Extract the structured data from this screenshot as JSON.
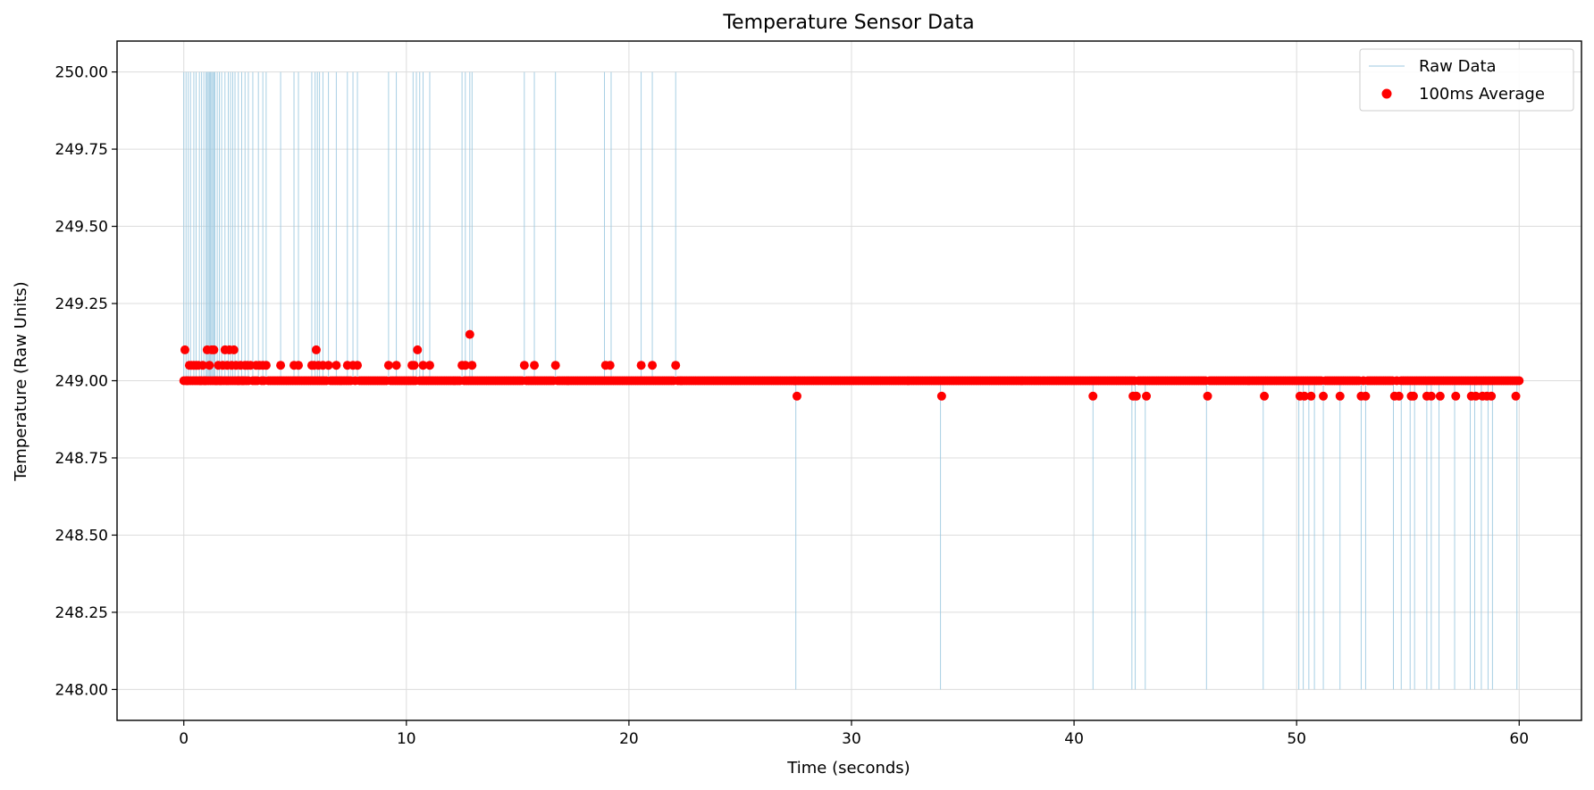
{
  "chart_data": {
    "type": "line",
    "title": "Temperature Sensor Data",
    "xlabel": "Time (seconds)",
    "ylabel": "Temperature (Raw Units)",
    "xlim": [
      -3,
      62.8
    ],
    "ylim": [
      247.9,
      250.1
    ],
    "xticks": [
      0,
      10,
      20,
      30,
      40,
      50,
      60
    ],
    "xtick_labels": [
      "0",
      "10",
      "20",
      "30",
      "40",
      "50",
      "60"
    ],
    "yticks": [
      248.0,
      248.25,
      248.5,
      248.75,
      249.0,
      249.25,
      249.5,
      249.75,
      250.0
    ],
    "ytick_labels": [
      "248.00",
      "248.25",
      "248.50",
      "248.75",
      "249.00",
      "249.25",
      "249.50",
      "249.75",
      "250.00"
    ],
    "grid": true,
    "legend_position": "top-right",
    "colors": {
      "raw": "#9ecae1",
      "average": "#ff0000"
    },
    "series": [
      {
        "name": "Raw Data",
        "kind": "line",
        "baseline": 249.0,
        "spikes_up": [
          0.0,
          0.1,
          0.2,
          0.3,
          0.45,
          0.55,
          0.7,
          0.8,
          0.9,
          1.0,
          1.05,
          1.1,
          1.15,
          1.2,
          1.25,
          1.3,
          1.35,
          1.4,
          1.5,
          1.6,
          1.7,
          1.85,
          2.0,
          2.1,
          2.2,
          2.3,
          2.45,
          2.6,
          2.75,
          2.9,
          3.1,
          3.35,
          3.55,
          3.7,
          4.35,
          4.95,
          5.15,
          5.75,
          5.9,
          6.0,
          6.1,
          6.25,
          6.5,
          6.85,
          7.35,
          7.6,
          7.8,
          9.2,
          9.55,
          10.3,
          10.45,
          10.6,
          10.75,
          11.05,
          12.5,
          12.65,
          12.85,
          12.95,
          15.3,
          15.75,
          16.7,
          18.9,
          19.2,
          20.55,
          21.05,
          22.1
        ],
        "spikes_down": [
          27.5,
          34.0,
          40.85,
          42.6,
          42.75,
          43.2,
          45.95,
          48.5,
          50.1,
          50.3,
          50.55,
          50.8,
          51.2,
          51.95,
          52.9,
          53.1,
          54.35,
          54.7,
          55.1,
          55.3,
          55.85,
          56.05,
          56.4,
          57.1,
          57.8,
          58.0,
          58.3,
          58.6,
          58.8,
          59.9
        ]
      },
      {
        "name": "100ms Average",
        "kind": "scatter",
        "baseline": 249.0,
        "x_start": 0.0,
        "x_end": 60.0,
        "x_step": 0.1,
        "deviations": [
          {
            "x": 0.05,
            "y": 249.1
          },
          {
            "x": 0.15,
            "y": 249.0
          },
          {
            "x": 0.25,
            "y": 249.05
          },
          {
            "x": 0.35,
            "y": 249.05
          },
          {
            "x": 0.45,
            "y": 249.05
          },
          {
            "x": 0.55,
            "y": 249.05
          },
          {
            "x": 0.65,
            "y": 249.05
          },
          {
            "x": 0.75,
            "y": 249.0
          },
          {
            "x": 0.85,
            "y": 249.05
          },
          {
            "x": 0.95,
            "y": 249.0
          },
          {
            "x": 1.05,
            "y": 249.1
          },
          {
            "x": 1.15,
            "y": 249.05
          },
          {
            "x": 1.25,
            "y": 249.1
          },
          {
            "x": 1.35,
            "y": 249.1
          },
          {
            "x": 1.45,
            "y": 249.0
          },
          {
            "x": 1.55,
            "y": 249.05
          },
          {
            "x": 1.65,
            "y": 249.0
          },
          {
            "x": 1.75,
            "y": 249.05
          },
          {
            "x": 1.85,
            "y": 249.1
          },
          {
            "x": 1.95,
            "y": 249.05
          },
          {
            "x": 2.05,
            "y": 249.1
          },
          {
            "x": 2.15,
            "y": 249.05
          },
          {
            "x": 2.25,
            "y": 249.1
          },
          {
            "x": 2.35,
            "y": 249.05
          },
          {
            "x": 2.45,
            "y": 249.0
          },
          {
            "x": 2.55,
            "y": 249.05
          },
          {
            "x": 2.65,
            "y": 249.0
          },
          {
            "x": 2.75,
            "y": 249.05
          },
          {
            "x": 2.85,
            "y": 249.05
          },
          {
            "x": 3.0,
            "y": 249.05
          },
          {
            "x": 3.1,
            "y": 249.0
          },
          {
            "x": 3.25,
            "y": 249.05
          },
          {
            "x": 3.4,
            "y": 249.05
          },
          {
            "x": 3.55,
            "y": 249.05
          },
          {
            "x": 3.7,
            "y": 249.05
          },
          {
            "x": 4.35,
            "y": 249.05
          },
          {
            "x": 4.95,
            "y": 249.05
          },
          {
            "x": 5.15,
            "y": 249.05
          },
          {
            "x": 5.75,
            "y": 249.05
          },
          {
            "x": 5.85,
            "y": 249.05
          },
          {
            "x": 5.95,
            "y": 249.1
          },
          {
            "x": 6.05,
            "y": 249.05
          },
          {
            "x": 6.25,
            "y": 249.05
          },
          {
            "x": 6.5,
            "y": 249.05
          },
          {
            "x": 6.85,
            "y": 249.05
          },
          {
            "x": 7.35,
            "y": 249.05
          },
          {
            "x": 7.6,
            "y": 249.05
          },
          {
            "x": 7.8,
            "y": 249.05
          },
          {
            "x": 9.2,
            "y": 249.05
          },
          {
            "x": 9.55,
            "y": 249.05
          },
          {
            "x": 10.25,
            "y": 249.05
          },
          {
            "x": 10.35,
            "y": 249.05
          },
          {
            "x": 10.5,
            "y": 249.1
          },
          {
            "x": 10.75,
            "y": 249.05
          },
          {
            "x": 11.05,
            "y": 249.05
          },
          {
            "x": 12.5,
            "y": 249.05
          },
          {
            "x": 12.65,
            "y": 249.05
          },
          {
            "x": 12.85,
            "y": 249.15
          },
          {
            "x": 12.95,
            "y": 249.05
          },
          {
            "x": 15.3,
            "y": 249.05
          },
          {
            "x": 15.75,
            "y": 249.05
          },
          {
            "x": 16.7,
            "y": 249.05
          },
          {
            "x": 18.95,
            "y": 249.05
          },
          {
            "x": 19.15,
            "y": 249.05
          },
          {
            "x": 20.55,
            "y": 249.05
          },
          {
            "x": 21.05,
            "y": 249.05
          },
          {
            "x": 22.1,
            "y": 249.05
          },
          {
            "x": 27.55,
            "y": 248.95
          },
          {
            "x": 34.05,
            "y": 248.95
          },
          {
            "x": 40.85,
            "y": 248.95
          },
          {
            "x": 42.65,
            "y": 248.95
          },
          {
            "x": 42.8,
            "y": 248.95
          },
          {
            "x": 43.25,
            "y": 248.95
          },
          {
            "x": 46.0,
            "y": 248.95
          },
          {
            "x": 48.55,
            "y": 248.95
          },
          {
            "x": 50.15,
            "y": 248.95
          },
          {
            "x": 50.35,
            "y": 248.95
          },
          {
            "x": 50.65,
            "y": 248.95
          },
          {
            "x": 51.2,
            "y": 248.95
          },
          {
            "x": 51.95,
            "y": 248.95
          },
          {
            "x": 52.9,
            "y": 248.95
          },
          {
            "x": 53.1,
            "y": 248.95
          },
          {
            "x": 54.4,
            "y": 248.95
          },
          {
            "x": 54.6,
            "y": 248.95
          },
          {
            "x": 55.15,
            "y": 248.95
          },
          {
            "x": 55.25,
            "y": 248.95
          },
          {
            "x": 55.85,
            "y": 248.95
          },
          {
            "x": 56.05,
            "y": 248.95
          },
          {
            "x": 56.45,
            "y": 248.95
          },
          {
            "x": 57.15,
            "y": 248.95
          },
          {
            "x": 57.85,
            "y": 248.95
          },
          {
            "x": 58.05,
            "y": 248.95
          },
          {
            "x": 58.35,
            "y": 248.95
          },
          {
            "x": 58.55,
            "y": 248.95
          },
          {
            "x": 58.75,
            "y": 248.95
          },
          {
            "x": 59.85,
            "y": 248.95
          }
        ]
      }
    ]
  }
}
